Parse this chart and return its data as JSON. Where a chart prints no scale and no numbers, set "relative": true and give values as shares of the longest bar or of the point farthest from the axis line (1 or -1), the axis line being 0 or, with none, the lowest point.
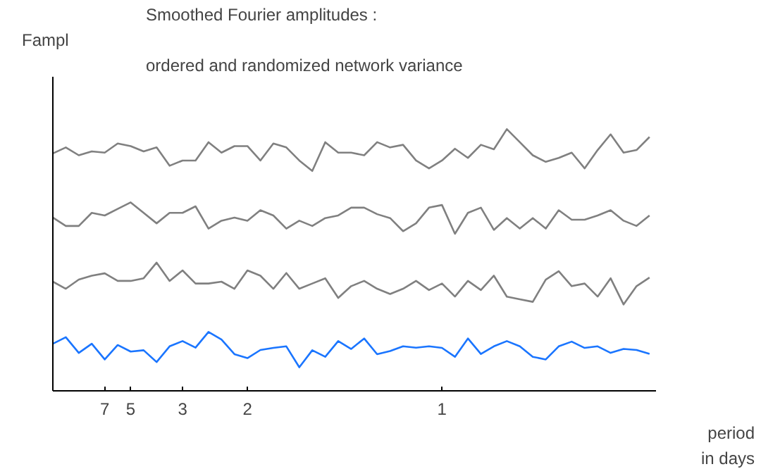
{
  "chart_data": {
    "type": "line",
    "title": "Smoothed   Fourier amplitudes  :",
    "subtitle": "ordered   and  randomized   network  variance",
    "ylabel": "Fampl",
    "xlabel": "period\nin days",
    "relative": true,
    "grid": false,
    "categories": [
      null,
      null,
      null,
      null,
      "7",
      null,
      "5",
      null,
      null,
      null,
      "3",
      null,
      null,
      null,
      null,
      "2",
      null,
      null,
      null,
      null,
      null,
      null,
      null,
      null,
      null,
      null,
      null,
      null,
      null,
      null,
      "1",
      null,
      null,
      null,
      null,
      null,
      null,
      null,
      null,
      null,
      null,
      null,
      null,
      null,
      null,
      null,
      null
    ],
    "series": [
      {
        "color": "#808080",
        "values": [
          0.907,
          0.93,
          0.9,
          0.915,
          0.91,
          0.945,
          0.935,
          0.915,
          0.93,
          0.86,
          0.88,
          0.88,
          0.95,
          0.91,
          0.935,
          0.935,
          0.88,
          0.945,
          0.93,
          0.88,
          0.84,
          0.95,
          0.91,
          0.91,
          0.9,
          0.95,
          0.93,
          0.94,
          0.88,
          0.85,
          0.88,
          0.925,
          0.89,
          0.94,
          0.923,
          1,
          0.95,
          0.9,
          0.875,
          0.89,
          0.91,
          0.85,
          0.92,
          0.98,
          0.91,
          0.92,
          0.97
        ]
      },
      {
        "color": "#808080",
        "values": [
          0.662,
          0.63,
          0.63,
          0.68,
          0.67,
          0.695,
          0.72,
          0.68,
          0.64,
          0.68,
          0.68,
          0.705,
          0.62,
          0.65,
          0.662,
          0.65,
          0.69,
          0.67,
          0.62,
          0.65,
          0.63,
          0.66,
          0.67,
          0.7,
          0.7,
          0.675,
          0.66,
          0.61,
          0.64,
          0.7,
          0.71,
          0.6,
          0.68,
          0.7,
          0.615,
          0.66,
          0.62,
          0.66,
          0.62,
          0.69,
          0.654,
          0.654,
          0.67,
          0.69,
          0.65,
          0.63,
          0.67
        ]
      },
      {
        "color": "#808080",
        "values": [
          0.417,
          0.39,
          0.425,
          0.44,
          0.449,
          0.42,
          0.42,
          0.43,
          0.49,
          0.42,
          0.46,
          0.41,
          0.41,
          0.417,
          0.39,
          0.46,
          0.44,
          0.39,
          0.45,
          0.39,
          0.41,
          0.43,
          0.355,
          0.4,
          0.42,
          0.39,
          0.37,
          0.39,
          0.42,
          0.385,
          0.41,
          0.36,
          0.42,
          0.385,
          0.44,
          0.36,
          0.35,
          0.34,
          0.425,
          0.457,
          0.4,
          0.41,
          0.36,
          0.43,
          0.33,
          0.4,
          0.433
        ]
      },
      {
        "color": "#1a75ff",
        "values": [
          0.18,
          0.205,
          0.145,
          0.18,
          0.12,
          0.175,
          0.15,
          0.155,
          0.11,
          0.17,
          0.19,
          0.165,
          0.225,
          0.196,
          0.14,
          0.125,
          0.156,
          0.164,
          0.17,
          0.09,
          0.155,
          0.13,
          0.19,
          0.16,
          0.2,
          0.14,
          0.152,
          0.17,
          0.165,
          0.17,
          0.164,
          0.13,
          0.2,
          0.141,
          0.17,
          0.19,
          0.17,
          0.13,
          0.12,
          0.17,
          0.188,
          0.164,
          0.17,
          0.145,
          0.16,
          0.156,
          0.141
        ]
      }
    ]
  }
}
